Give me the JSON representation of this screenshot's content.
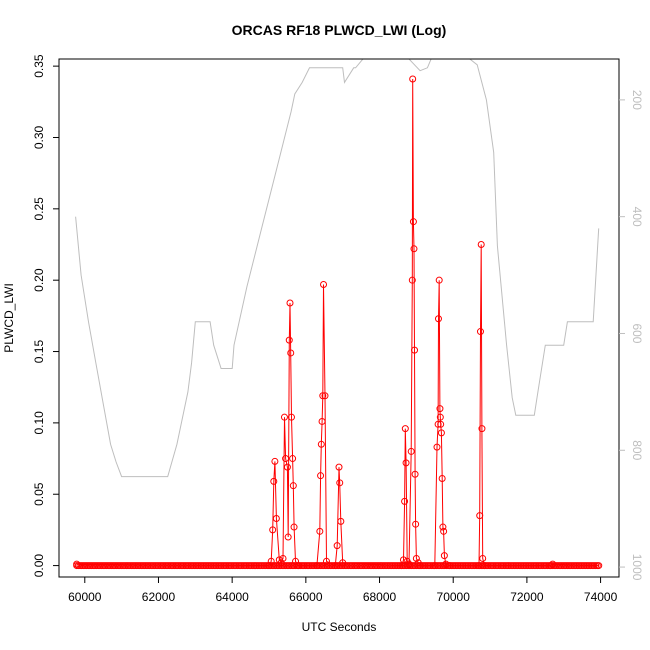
{
  "chart_data": {
    "type": "line",
    "title": "ORCAS RF18 PLWCD_LWI (Log)",
    "xlabel": "UTC Seconds",
    "ylabel": "PLWCD_LWI",
    "xlim": [
      59300,
      74500
    ],
    "ylim": [
      -0.008,
      0.355
    ],
    "x_ticks": [
      60000,
      62000,
      64000,
      66000,
      68000,
      70000,
      72000,
      74000
    ],
    "y_ticks": [
      0.0,
      0.05,
      0.1,
      0.15,
      0.2,
      0.25,
      0.3,
      0.35
    ],
    "y_tick_labels": [
      "0.00",
      "0.05",
      "0.10",
      "0.15",
      "0.20",
      "0.25",
      "0.30",
      "0.35"
    ],
    "right_axis": {
      "reversed": true,
      "ticks": [
        200,
        400,
        600,
        800,
        1000
      ],
      "ylim": [
        1017,
        130
      ],
      "color": "#bebebe"
    },
    "grid": false,
    "series": [
      {
        "type": "line",
        "axis": "right",
        "color": "#bebebe",
        "x": [
          59750,
          59900,
          60100,
          60300,
          60500,
          60700,
          60850,
          61000,
          61500,
          62000,
          62250,
          62500,
          62800,
          62900,
          63000,
          63400,
          63500,
          63700,
          64000,
          64050,
          64400,
          64800,
          65200,
          65600,
          65700,
          65900,
          66100,
          66400,
          66550,
          67000,
          67050,
          67300,
          67350,
          67550,
          67650,
          67850,
          68000,
          68300,
          68500,
          68800,
          69100,
          69300,
          69400,
          69500,
          69650,
          69900,
          70000,
          70450,
          70650,
          70900,
          71100,
          71200,
          71450,
          71600,
          71700,
          72000,
          72200,
          72300,
          72500,
          73000,
          73100,
          73800,
          73950
        ],
        "values": [
          400,
          500,
          580,
          650,
          720,
          790,
          820,
          845,
          845,
          845,
          845,
          790,
          700,
          650,
          580,
          580,
          620,
          660,
          660,
          620,
          520,
          420,
          320,
          220,
          190,
          170,
          145,
          145,
          145,
          145,
          170,
          145,
          145,
          130,
          130,
          130,
          125,
          120,
          120,
          130,
          150,
          145,
          130,
          130,
          130,
          125,
          125,
          130,
          140,
          200,
          290,
          450,
          620,
          710,
          740,
          740,
          740,
          700,
          620,
          620,
          580,
          580,
          420
        ]
      },
      {
        "type": "line",
        "axis": "left",
        "color": "#ff0000",
        "marker": "circle-open",
        "x": [
          59780,
          65000,
          65060,
          65100,
          65130,
          65160,
          65200,
          65280,
          65330,
          65380,
          65420,
          65450,
          65500,
          65520,
          65550,
          65570,
          65590,
          65610,
          65640,
          65660,
          65680,
          65720,
          65800,
          66300,
          66380,
          66400,
          66420,
          66440,
          66460,
          66480,
          66520,
          66560,
          66800,
          66850,
          66900,
          66920,
          66950,
          67000,
          68600,
          68650,
          68680,
          68700,
          68720,
          68750,
          68800,
          68860,
          68890,
          68900,
          68920,
          68935,
          68950,
          68965,
          68980,
          69000,
          69050,
          69100,
          69500,
          69560,
          69590,
          69600,
          69620,
          69640,
          69650,
          69660,
          69680,
          69700,
          69720,
          69740,
          69760,
          69800,
          69900,
          70700,
          70720,
          70740,
          70760,
          70780,
          70800,
          70850,
          72650,
          72700,
          73950
        ],
        "values": [
          0.001,
          0.0,
          0.003,
          0.025,
          0.059,
          0.073,
          0.033,
          0.004,
          0.002,
          0.005,
          0.104,
          0.075,
          0.069,
          0.02,
          0.158,
          0.184,
          0.149,
          0.104,
          0.075,
          0.056,
          0.027,
          0.003,
          0.0,
          0.0,
          0.024,
          0.063,
          0.085,
          0.101,
          0.119,
          0.197,
          0.119,
          0.003,
          0.0,
          0.014,
          0.069,
          0.058,
          0.031,
          0.002,
          0.0,
          0.004,
          0.045,
          0.096,
          0.072,
          0.003,
          0.001,
          0.08,
          0.2,
          0.341,
          0.241,
          0.222,
          0.151,
          0.064,
          0.029,
          0.005,
          0.002,
          0.0,
          0.0,
          0.083,
          0.099,
          0.173,
          0.2,
          0.11,
          0.104,
          0.099,
          0.093,
          0.061,
          0.027,
          0.024,
          0.007,
          0.001,
          0.0,
          0.0,
          0.035,
          0.164,
          0.225,
          0.096,
          0.005,
          0.0,
          0.0,
          0.001,
          0.0
        ]
      }
    ]
  }
}
